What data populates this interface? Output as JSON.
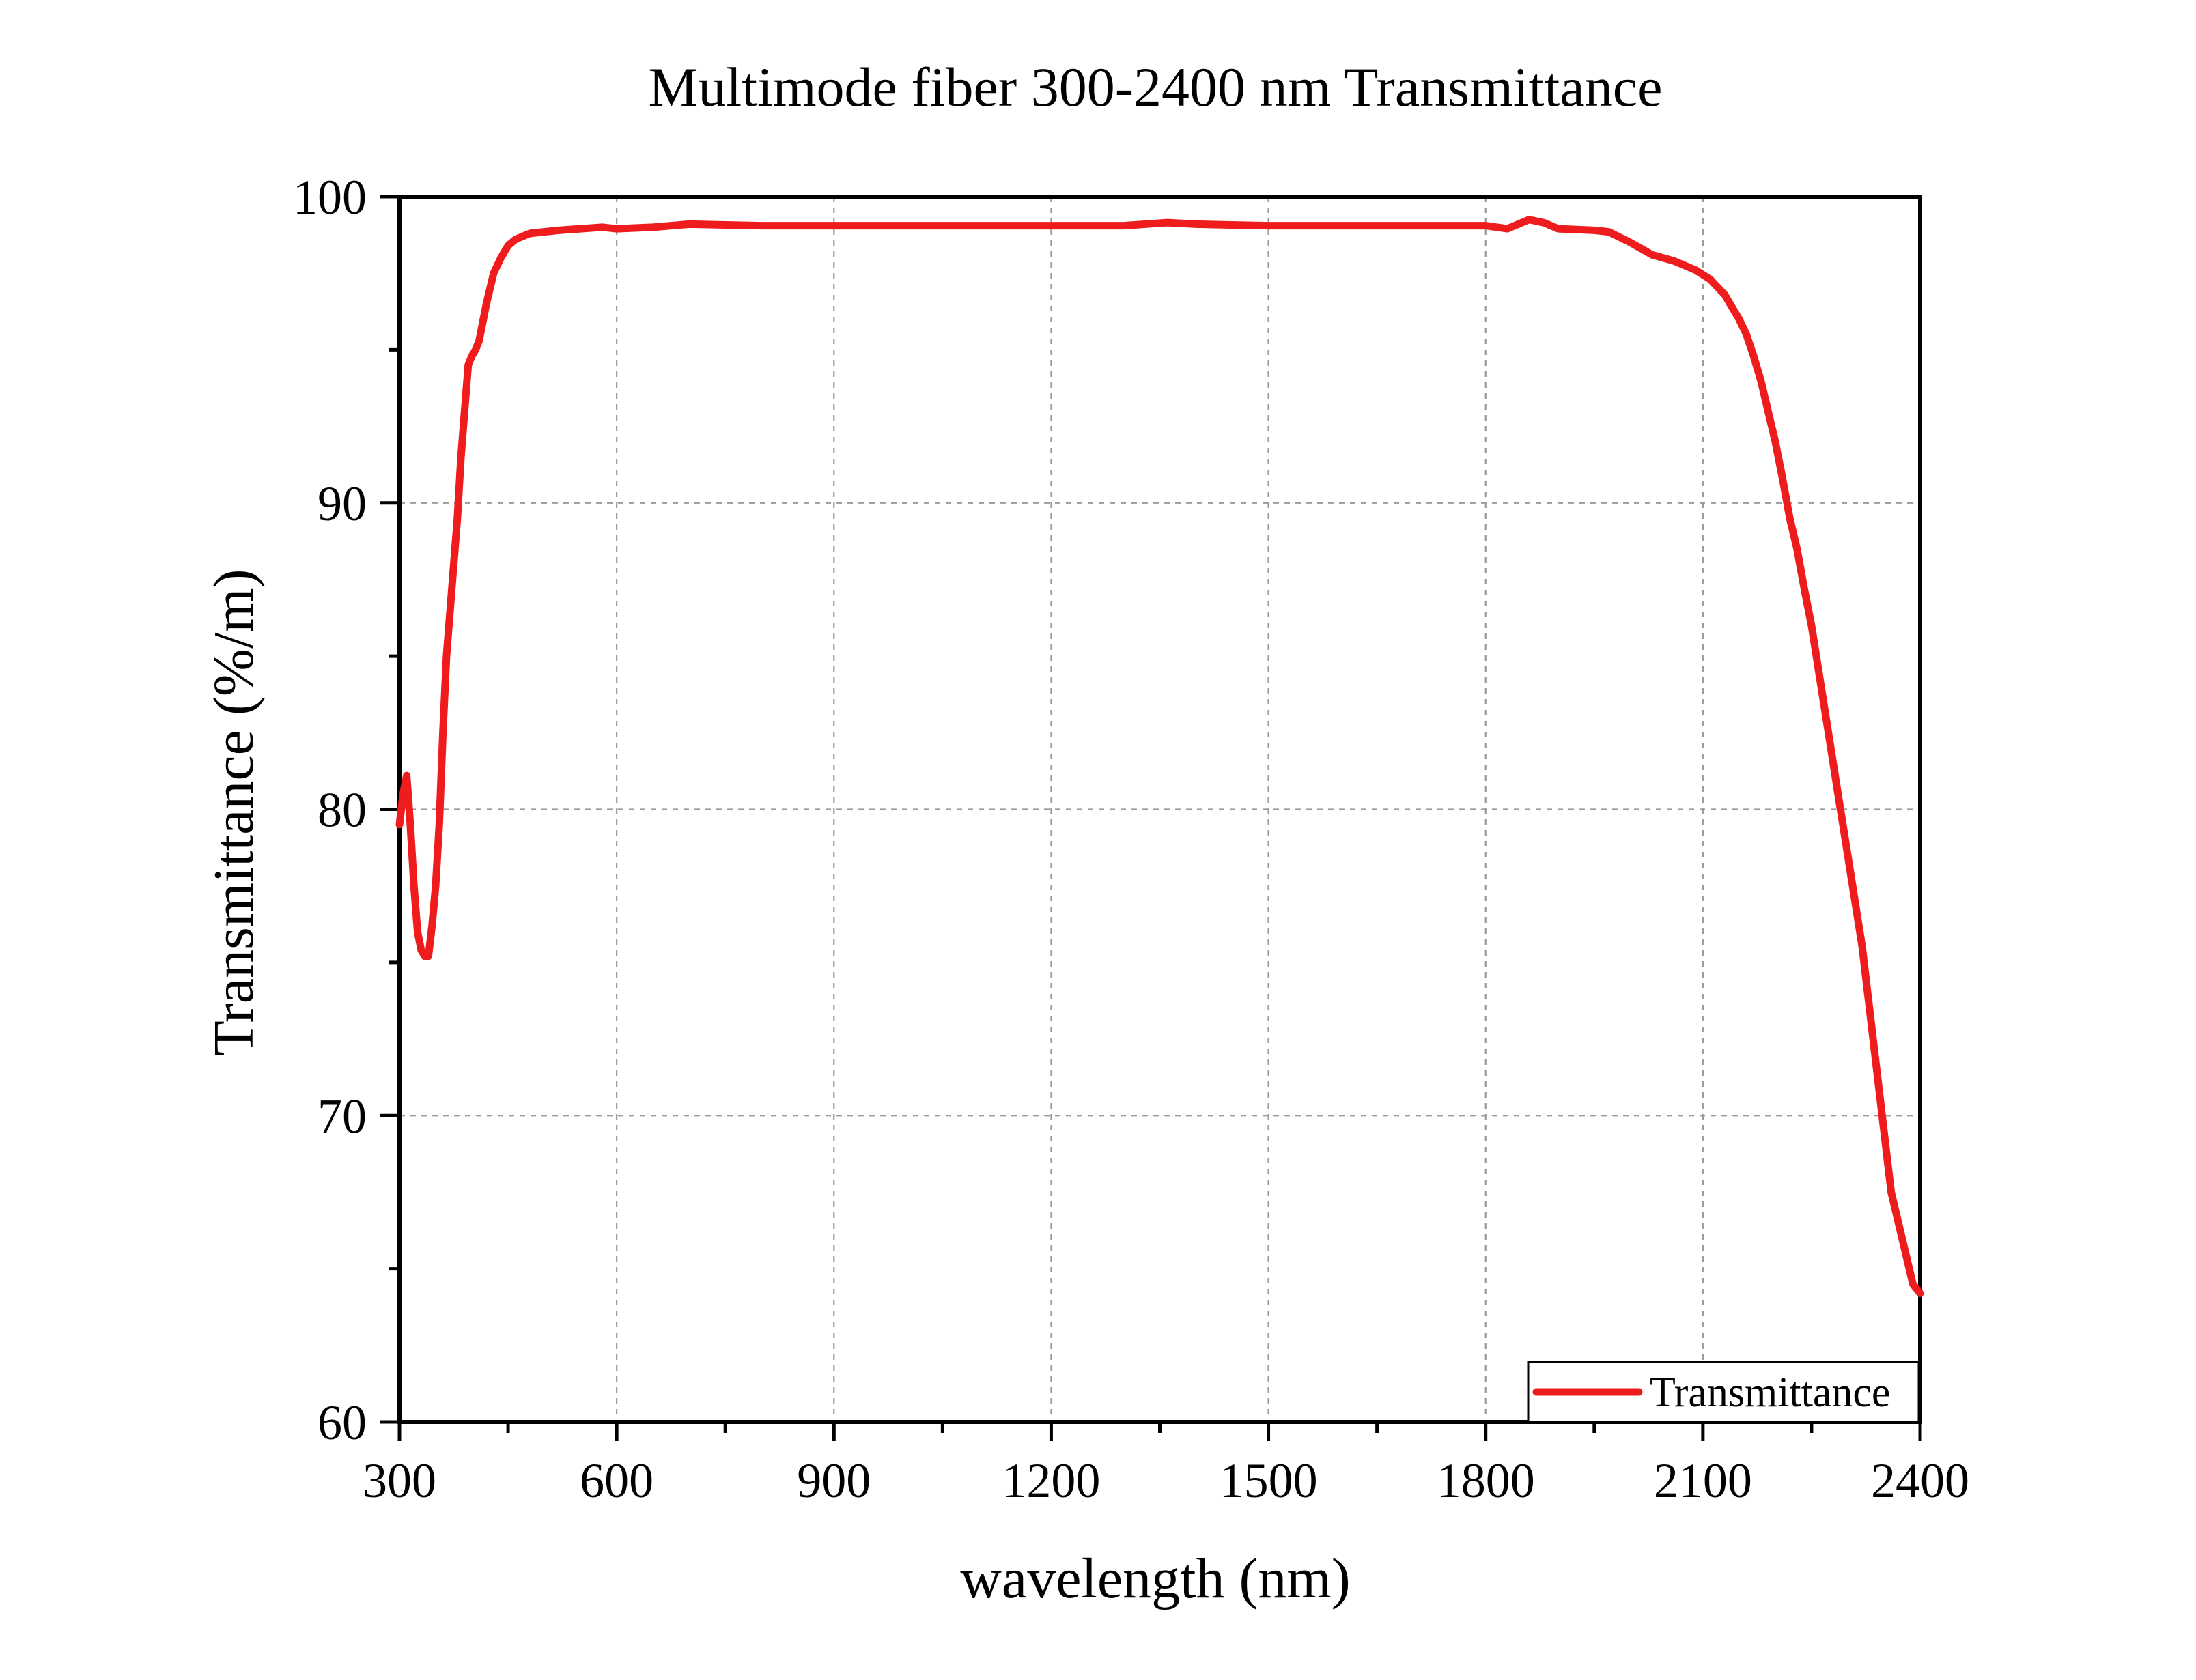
{
  "chart_data": {
    "type": "line",
    "title": "Multimode fiber 300-2400 nm Transmittance",
    "xlabel": "wavelength (nm)",
    "ylabel": "Transmittance (%/m)",
    "xlim": [
      300,
      2400
    ],
    "ylim": [
      60,
      100
    ],
    "xticks": [
      300,
      600,
      900,
      1200,
      1500,
      1800,
      2100,
      2400
    ],
    "yticks": [
      60,
      70,
      80,
      90,
      100
    ],
    "x_tick_labels": [
      "300",
      "600",
      "900",
      "1200",
      "1500",
      "1800",
      "2100",
      "2400"
    ],
    "y_tick_labels": [
      "60",
      "70",
      "80",
      "90",
      "100"
    ],
    "grid": true,
    "legend_position": "bottom-right",
    "series": [
      {
        "name": "Transmittance",
        "color": "#ee1c1c",
        "x": [
          300,
          305,
          310,
          315,
          320,
          325,
          330,
          335,
          340,
          345,
          350,
          355,
          360,
          365,
          370,
          375,
          380,
          385,
          390,
          395,
          400,
          405,
          410,
          420,
          430,
          440,
          450,
          460,
          470,
          480,
          500,
          520,
          550,
          580,
          600,
          650,
          700,
          800,
          900,
          1000,
          1100,
          1200,
          1300,
          1360,
          1400,
          1500,
          1600,
          1700,
          1800,
          1830,
          1860,
          1880,
          1900,
          1950,
          1970,
          2000,
          2030,
          2060,
          2090,
          2110,
          2130,
          2150,
          2160,
          2170,
          2180,
          2190,
          2200,
          2210,
          2220,
          2230,
          2240,
          2250,
          2260,
          2270,
          2280,
          2290,
          2300,
          2310,
          2320,
          2330,
          2340,
          2350,
          2360,
          2370,
          2380,
          2390,
          2400
        ],
        "y": [
          79.5,
          80.5,
          81.1,
          79.5,
          77.5,
          76.0,
          75.4,
          75.2,
          75.2,
          76.2,
          77.5,
          79.5,
          82.5,
          85.0,
          86.5,
          88.0,
          89.5,
          91.5,
          93.0,
          94.5,
          94.8,
          95.0,
          95.3,
          96.5,
          97.5,
          98.0,
          98.4,
          98.6,
          98.7,
          98.8,
          98.85,
          98.9,
          98.95,
          99.0,
          98.95,
          99.0,
          99.1,
          99.05,
          99.05,
          99.05,
          99.05,
          99.05,
          99.05,
          99.15,
          99.1,
          99.05,
          99.05,
          99.05,
          99.05,
          98.95,
          99.25,
          99.15,
          98.95,
          98.9,
          98.85,
          98.5,
          98.1,
          97.9,
          97.6,
          97.3,
          96.8,
          96.0,
          95.5,
          94.8,
          94.0,
          93.0,
          92.0,
          90.8,
          89.5,
          88.5,
          87.2,
          86.0,
          84.5,
          83.0,
          81.5,
          80.0,
          78.5,
          77.0,
          75.5,
          73.5,
          71.5,
          69.5,
          67.5,
          66.5,
          65.5,
          64.5,
          64.2
        ]
      }
    ]
  }
}
